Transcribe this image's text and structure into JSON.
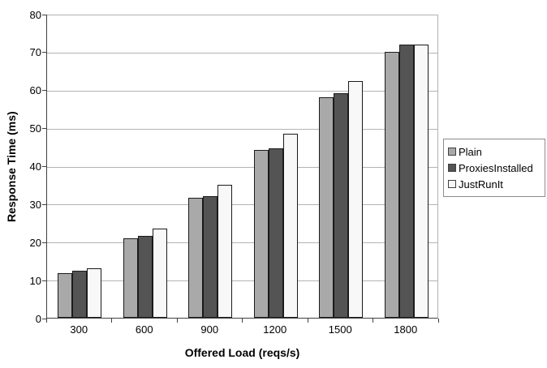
{
  "chart_data": {
    "type": "bar",
    "title": "",
    "xlabel": "Offered Load (reqs/s)",
    "ylabel": "Response Time (ms)",
    "categories": [
      "300",
      "600",
      "900",
      "1200",
      "1500",
      "1800"
    ],
    "series": [
      {
        "name": "Plain",
        "color": "#A9A9A9",
        "values": [
          11.8,
          21.0,
          31.5,
          44.2,
          58.0,
          70.0
        ]
      },
      {
        "name": "ProxiesInstalled",
        "color": "#545454",
        "values": [
          12.4,
          21.5,
          32.0,
          44.6,
          59.2,
          72.0
        ]
      },
      {
        "name": "JustRunIt",
        "color": "#F8F8F8",
        "values": [
          13.0,
          23.5,
          35.0,
          48.5,
          62.2,
          72.0
        ]
      }
    ],
    "ylim": [
      0,
      80
    ],
    "yticks": [
      0,
      10,
      20,
      30,
      40,
      50,
      60,
      70,
      80
    ],
    "grid": true,
    "legend_position": "right",
    "colors": {
      "background": "#FFFFFF",
      "gridline": "#B3B3B3",
      "axis": "#404040",
      "bar_border": "#1B1B1B",
      "legend_border": "#8C8C8C"
    }
  }
}
